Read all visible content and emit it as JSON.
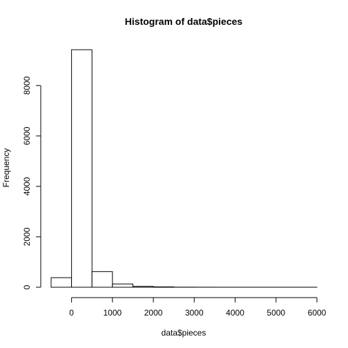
{
  "chart_data": {
    "type": "bar",
    "title": "Histogram of data$pieces",
    "xlabel": "data$pieces",
    "ylabel": "Frequency",
    "bin_edges": [
      -500,
      0,
      500,
      1000,
      1500,
      2000,
      2500,
      3000,
      3500,
      4000,
      4500,
      5000,
      5500,
      6000
    ],
    "values": [
      380,
      9420,
      620,
      130,
      35,
      15,
      4,
      2,
      1,
      1,
      1,
      1,
      1
    ],
    "x_ticks": [
      0,
      1000,
      2000,
      3000,
      4000,
      5000,
      6000
    ],
    "y_ticks": [
      0,
      2000,
      4000,
      6000,
      8000
    ],
    "xlim": [
      -500,
      6000
    ],
    "ylim": [
      0,
      9420
    ],
    "grid": false,
    "legend": "none",
    "bar_fill": "#ffffff",
    "bar_stroke": "#000000"
  }
}
